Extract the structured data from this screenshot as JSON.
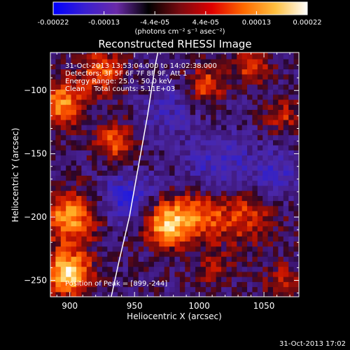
{
  "colorbar": {
    "ticks": [
      "-0.00022",
      "-0.00013",
      "-4.4e-05",
      "4.4e-05",
      "0.00013",
      "0.00022"
    ],
    "units": "(photons cm⁻² s⁻¹ asec⁻²)",
    "colors": [
      "#0000ff",
      "#3a1fd0",
      "#6a2aa8",
      "#000000",
      "#7a0a10",
      "#e00000",
      "#ff6a00",
      "#ffc040",
      "#ffffff"
    ]
  },
  "annotations": {
    "line1": "31-Oct-2013 13:53:04.000 to 14:02:38.000",
    "line2": "Detectors: 3F 5F 6F 7F 8F 9F, Att 1",
    "line3": "Energy Range: 25.0 - 50.0 keV",
    "line4": "Clean    Total counts: 5.11E+03",
    "peak": "Position of Peak = [899,-244]"
  },
  "timestamp": "31-Oct-2013 17:02",
  "chart_data": {
    "type": "heatmap",
    "title": "Reconstructed RHESSI Image",
    "xlabel": "Heliocentric X (arcsec)",
    "ylabel": "Heliocentric Y (arcsec)",
    "xlim": [
      885,
      1077
    ],
    "ylim": [
      -263,
      -70
    ],
    "xticks": [
      900,
      950,
      1000,
      1050
    ],
    "xtick_labels": [
      "900",
      "950",
      "1000",
      "1050"
    ],
    "yticks": [
      -100,
      -150,
      -200,
      -250
    ],
    "ytick_labels": [
      "−100",
      "−150",
      "−200",
      "−250"
    ],
    "peak_position": [
      899,
      -244
    ],
    "limb_curve": [
      [
        932,
        -263
      ],
      [
        938,
        -235
      ],
      [
        946,
        -200
      ],
      [
        953,
        -160
      ],
      [
        960,
        -120
      ],
      [
        966,
        -80
      ],
      [
        968,
        -70
      ]
    ],
    "sources": [
      {
        "x": 899,
        "y": -244,
        "amp": 1.0,
        "sigma": 12
      },
      {
        "x": 900,
        "y": -200,
        "amp": 0.75,
        "sigma": 14
      },
      {
        "x": 975,
        "y": -205,
        "amp": 0.85,
        "sigma": 12
      },
      {
        "x": 1000,
        "y": -198,
        "amp": 0.55,
        "sigma": 14
      },
      {
        "x": 1035,
        "y": -200,
        "amp": 0.45,
        "sigma": 16
      },
      {
        "x": 895,
        "y": -110,
        "amp": 0.7,
        "sigma": 12
      },
      {
        "x": 925,
        "y": -85,
        "amp": 0.55,
        "sigma": 12
      },
      {
        "x": 935,
        "y": -140,
        "amp": 0.55,
        "sigma": 10
      },
      {
        "x": 1005,
        "y": -95,
        "amp": 0.5,
        "sigma": 10
      },
      {
        "x": 1040,
        "y": -80,
        "amp": 0.45,
        "sigma": 10
      },
      {
        "x": 1065,
        "y": -120,
        "amp": 0.35,
        "sigma": 10
      },
      {
        "x": 1065,
        "y": -250,
        "amp": 0.35,
        "sigma": 10
      },
      {
        "x": 1010,
        "y": -240,
        "amp": 0.3,
        "sigma": 10
      },
      {
        "x": 945,
        "y": -185,
        "amp": -0.45,
        "sigma": 14
      },
      {
        "x": 1015,
        "y": -160,
        "amp": -0.35,
        "sigma": 18
      },
      {
        "x": 1060,
        "y": -165,
        "amp": -0.3,
        "sigma": 14
      },
      {
        "x": 975,
        "y": -115,
        "amp": -0.25,
        "sigma": 14
      }
    ]
  }
}
